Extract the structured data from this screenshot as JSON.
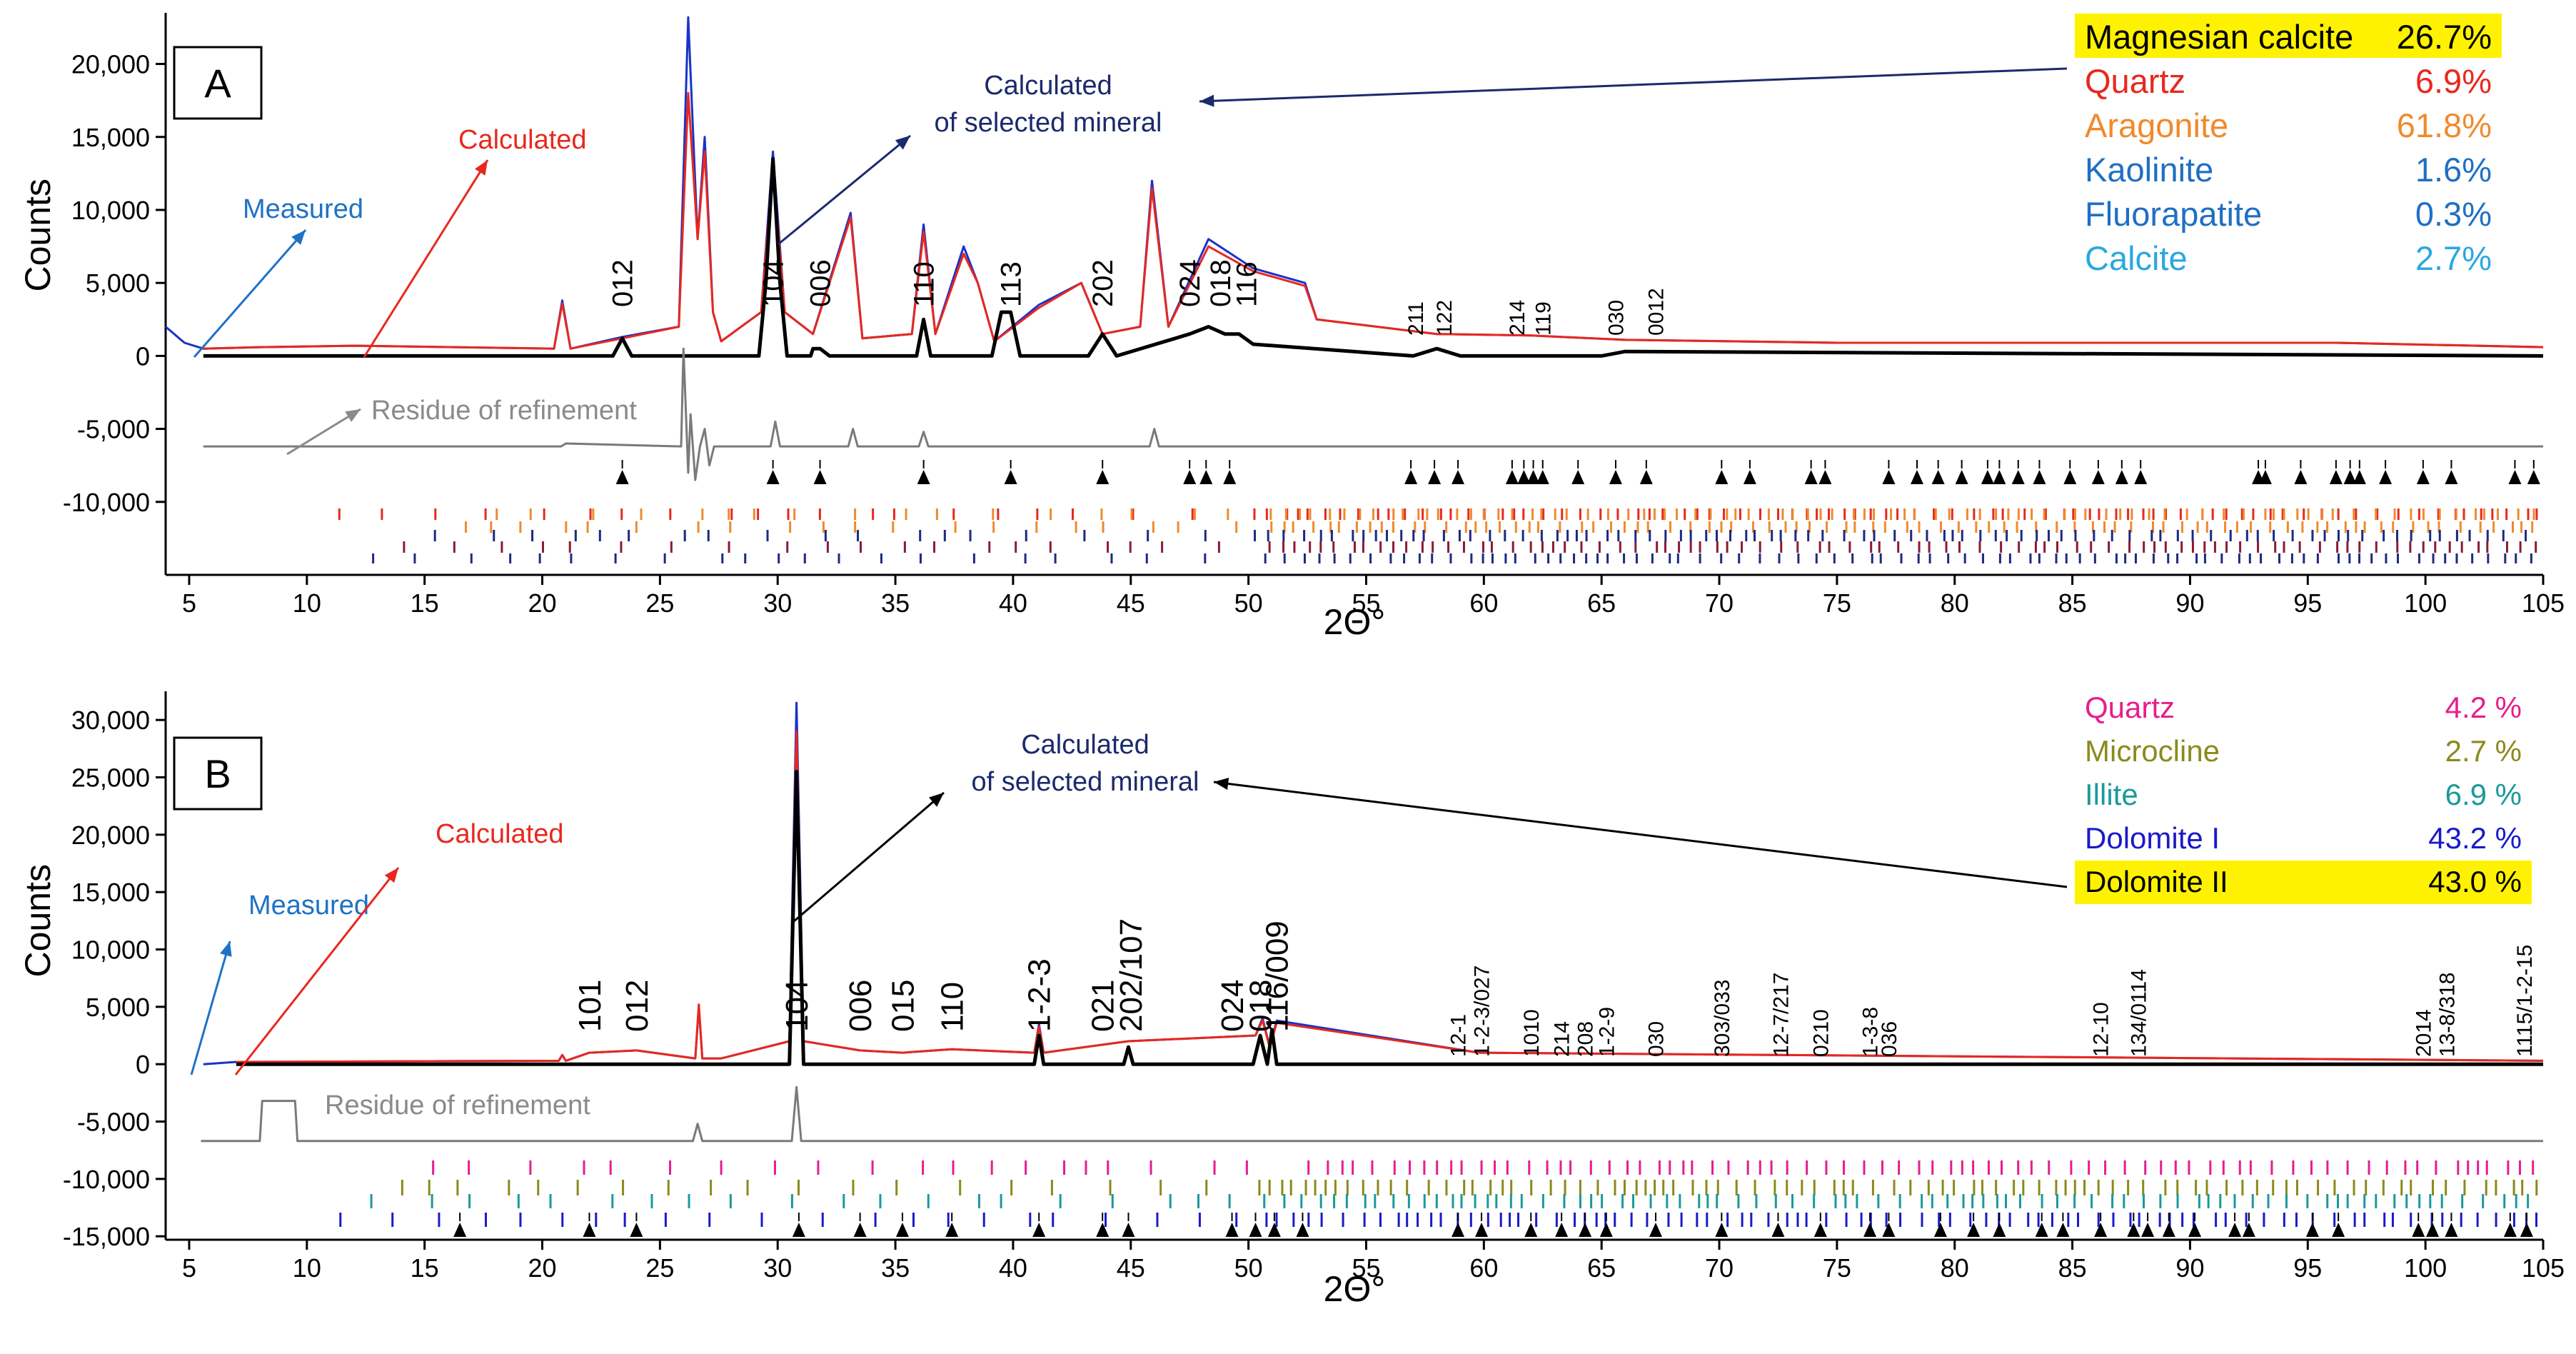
{
  "chart_data": [
    {
      "type": "line",
      "panel_label": "A",
      "xlabel": "2Θ°",
      "ylabel": "Counts",
      "xlim": [
        4,
        105
      ],
      "ylim": [
        -15000,
        23500
      ],
      "x_ticks": [
        5,
        10,
        15,
        20,
        25,
        30,
        35,
        40,
        45,
        50,
        55,
        60,
        65,
        70,
        75,
        80,
        85,
        90,
        95,
        100,
        105
      ],
      "y_ticks": [
        {
          "value": 20000,
          "label": "20,000"
        },
        {
          "value": 15000,
          "label": "15,000"
        },
        {
          "value": 10000,
          "label": "10,000"
        },
        {
          "value": 5000,
          "label": "5,000"
        },
        {
          "value": 0,
          "label": "0"
        },
        {
          "value": -5000,
          "label": "-5,000"
        },
        {
          "value": -10000,
          "label": "-10,000"
        }
      ],
      "series_labels": {
        "measured": "Measured",
        "calculated": "Calculated",
        "selected": "Calculated\nof selected mineral",
        "residue": "Residue of refinement"
      },
      "series": [
        {
          "name": "Measured",
          "color": "#1a32c8",
          "x": [
            4,
            4.8,
            5.6,
            8,
            12,
            20.5,
            20.85,
            21.2,
            23.4,
            25.8,
            26.2,
            26.6,
            26.9,
            27.25,
            27.6,
            29.3,
            29.8,
            30.3,
            31.5,
            33.1,
            33.6,
            35.7,
            36.2,
            36.7,
            37.9,
            38.5,
            39.2,
            41.1,
            42.9,
            43.8,
            45.4,
            45.9,
            46.6,
            48.3,
            50.2,
            52.4,
            52.9,
            58,
            62,
            66,
            75,
            80,
            96.2,
            105
          ],
          "y": [
            2000,
            900,
            500,
            600,
            700,
            500,
            3800,
            500,
            1300,
            2000,
            23200,
            8000,
            15000,
            3000,
            1000,
            3000,
            14000,
            3000,
            1500,
            9800,
            1200,
            1500,
            9000,
            1500,
            7500,
            5000,
            1000,
            3500,
            5000,
            1500,
            2000,
            12000,
            2000,
            8000,
            6000,
            5000,
            2500,
            1500,
            1400,
            1100,
            900,
            900,
            900,
            600
          ]
        },
        {
          "name": "Calculated",
          "color": "#e8281e",
          "x": [
            5.6,
            8,
            12,
            20.5,
            20.85,
            21.2,
            23.4,
            25.8,
            26.2,
            26.6,
            26.9,
            27.25,
            27.6,
            29.3,
            29.8,
            30.3,
            31.5,
            33.1,
            33.6,
            35.7,
            36.2,
            36.7,
            37.9,
            38.5,
            39.2,
            41.1,
            42.9,
            43.8,
            45.4,
            45.9,
            46.6,
            48.3,
            50.2,
            52.4,
            52.9,
            58,
            62,
            66,
            75,
            80,
            96.2,
            105
          ],
          "y": [
            500,
            600,
            700,
            500,
            3600,
            500,
            1200,
            2000,
            18000,
            8000,
            14000,
            3000,
            1000,
            3000,
            13000,
            3000,
            1500,
            9500,
            1200,
            1500,
            8500,
            1500,
            7000,
            5000,
            1000,
            3300,
            5000,
            1500,
            2000,
            11500,
            2000,
            7500,
            5800,
            4800,
            2500,
            1500,
            1400,
            1100,
            900,
            900,
            900,
            600
          ]
        },
        {
          "name": "Calculated of selected mineral",
          "color": "#000000",
          "x": [
            5.6,
            23,
            23.4,
            23.8,
            29.2,
            29.5,
            29.8,
            30.1,
            30.4,
            31.4,
            31.5,
            31.8,
            32.2,
            35.9,
            36.2,
            36.5,
            39.1,
            39.5,
            39.9,
            40.3,
            43.2,
            43.8,
            44.4,
            47.5,
            48.3,
            49,
            49.6,
            50.2,
            57,
            58,
            59,
            65,
            66,
            105
          ],
          "y": [
            0,
            0,
            1200,
            0,
            0,
            5000,
            13500,
            5000,
            0,
            0,
            500,
            500,
            0,
            0,
            2500,
            0,
            0,
            3000,
            3000,
            0,
            0,
            1500,
            0,
            1500,
            2000,
            1500,
            1500,
            800,
            0,
            500,
            0,
            0,
            300,
            0
          ]
        },
        {
          "name": "Residue of refinement",
          "color": "#7a7a7a",
          "x": [
            5.6,
            20.8,
            21,
            25.9,
            26,
            26.2,
            26.3,
            26.5,
            26.7,
            26.9,
            27.1,
            27.3,
            29.7,
            29.9,
            30.1,
            33,
            33.2,
            33.4,
            36,
            36.2,
            36.4,
            45.8,
            46,
            46.2,
            105
          ],
          "y": [
            -6200,
            -6200,
            -6000,
            -6200,
            500,
            -8000,
            -4000,
            -8500,
            -6200,
            -5000,
            -7500,
            -6200,
            -6200,
            -4500,
            -6200,
            -6200,
            -5000,
            -6200,
            -6200,
            -5200,
            -6200,
            -6200,
            -5000,
            -6200,
            -6200
          ]
        }
      ],
      "peak_labels": [
        {
          "x": 23.4,
          "label": "012"
        },
        {
          "x": 29.8,
          "label": "104"
        },
        {
          "x": 31.8,
          "label": "006"
        },
        {
          "x": 36.2,
          "label": "110"
        },
        {
          "x": 39.9,
          "label": "113"
        },
        {
          "x": 43.8,
          "label": "202"
        },
        {
          "x": 47.5,
          "label": "024"
        },
        {
          "x": 48.8,
          "label": "018"
        },
        {
          "x": 49.9,
          "label": "116"
        },
        {
          "x": 57.1,
          "label": "211"
        },
        {
          "x": 58.3,
          "label": "122"
        },
        {
          "x": 61.4,
          "label": "214"
        },
        {
          "x": 62.5,
          "label": "119"
        },
        {
          "x": 65.6,
          "label": "030"
        },
        {
          "x": 67.3,
          "label": "0012"
        }
      ],
      "peak_markers_x": [
        23.4,
        29.8,
        31.8,
        36.2,
        39.9,
        43.8,
        47.5,
        48.2,
        49.2,
        56.9,
        57.9,
        58.9,
        61.2,
        61.7,
        62.1,
        62.5,
        64,
        65.6,
        66.9,
        70.1,
        71.3,
        73.9,
        74.5,
        77.2,
        78.4,
        79.3,
        80.3,
        81.4,
        81.9,
        82.7,
        83.6,
        84.9,
        86.1,
        87.1,
        87.9,
        92.9,
        93.2,
        94.7,
        96.2,
        96.8,
        97.2,
        98.3,
        99.9,
        101.1,
        103.8,
        104.6
      ],
      "legend": [
        {
          "name": "Magnesian calcite",
          "value": "26.7%",
          "color": "#000000",
          "highlight": true
        },
        {
          "name": "Quartz",
          "value": "6.9%",
          "color": "#e8281e",
          "highlight": false
        },
        {
          "name": "Aragonite",
          "value": "61.8%",
          "color": "#f08a2c",
          "highlight": false
        },
        {
          "name": "Kaolinite",
          "value": "1.6%",
          "color": "#1f6fc4",
          "highlight": false
        },
        {
          "name": "Fluorapatite",
          "value": "0.3%",
          "color": "#1f6fc4",
          "highlight": false
        },
        {
          "name": "Calcite",
          "value": "2.7%",
          "color": "#29a8e0",
          "highlight": false
        }
      ],
      "colors": {
        "measured": "#1f72c4",
        "calculated": "#e8281e",
        "selected": "#1c2a6b",
        "residue": "#8a8a8a",
        "highlight": "#fff200"
      }
    },
    {
      "type": "line",
      "panel_label": "B",
      "xlabel": "2Θ°",
      "ylabel": "Counts",
      "xlim": [
        4,
        105
      ],
      "ylim": [
        -15300,
        32500
      ],
      "x_ticks": [
        5,
        10,
        15,
        20,
        25,
        30,
        35,
        40,
        45,
        50,
        55,
        60,
        65,
        70,
        75,
        80,
        85,
        90,
        95,
        100,
        105
      ],
      "y_ticks": [
        {
          "value": 30000,
          "label": "30,000"
        },
        {
          "value": 25000,
          "label": "25,000"
        },
        {
          "value": 20000,
          "label": "20,000"
        },
        {
          "value": 15000,
          "label": "15,000"
        },
        {
          "value": 10000,
          "label": "10,000"
        },
        {
          "value": 5000,
          "label": "5,000"
        },
        {
          "value": 0,
          "label": "0"
        },
        {
          "value": -5000,
          "label": "-5,000"
        },
        {
          "value": -10000,
          "label": "-10,000"
        },
        {
          "value": -15000,
          "label": "-15,000"
        }
      ],
      "series_labels": {
        "measured": "Measured",
        "calculated": "Calculated",
        "selected": "Calculated\nof selected mineral",
        "residue": "Residue of refinement"
      },
      "series": [
        {
          "name": "Measured",
          "color": "#1a32c8",
          "x": [
            5.6,
            7,
            20.7,
            20.85,
            21,
            22,
            24,
            26.5,
            26.65,
            26.8,
            27.6,
            30.5,
            30.8,
            31.1,
            33.5,
            35.3,
            37.4,
            40.9,
            41.1,
            41.3,
            44.9,
            50.3,
            50.6,
            50.9,
            51.2,
            59.8,
            105
          ],
          "y": [
            0,
            200,
            300,
            800,
            300,
            1000,
            1200,
            500,
            5000,
            500,
            500,
            2000,
            31500,
            2000,
            1200,
            1000,
            1300,
            1000,
            3500,
            1000,
            2000,
            2500,
            4000,
            1500,
            3800,
            1000,
            300
          ]
        },
        {
          "name": "Calculated",
          "color": "#e8281e",
          "x": [
            7,
            20.7,
            20.85,
            21,
            22,
            24,
            26.5,
            26.65,
            26.8,
            27.6,
            30.5,
            30.8,
            31.1,
            33.5,
            35.3,
            37.4,
            40.9,
            41.1,
            41.3,
            44.9,
            50.3,
            50.6,
            50.9,
            51.2,
            59.8,
            105
          ],
          "y": [
            200,
            300,
            800,
            300,
            1000,
            1200,
            500,
            5200,
            500,
            500,
            2000,
            29000,
            2000,
            1200,
            1000,
            1300,
            1000,
            3300,
            1000,
            2000,
            2500,
            3800,
            1500,
            3600,
            1000,
            300
          ]
        },
        {
          "name": "Calculated of selected mineral",
          "color": "#000000",
          "x": [
            7,
            30.5,
            30.8,
            31.1,
            40.9,
            41.1,
            41.3,
            44.7,
            44.9,
            45.1,
            50.2,
            50.5,
            50.8,
            51,
            51.2,
            105
          ],
          "y": [
            0,
            0,
            25500,
            0,
            0,
            2500,
            0,
            0,
            1500,
            0,
            0,
            2500,
            0,
            3000,
            0,
            0
          ]
        },
        {
          "name": "Residue of refinement",
          "color": "#7a7a7a",
          "x": [
            5.5,
            8,
            8.1,
            9.5,
            9.6,
            26.4,
            26.6,
            26.8,
            30.6,
            30.8,
            31,
            105
          ],
          "y": [
            -6700,
            -6700,
            -3200,
            -3200,
            -6700,
            -6700,
            -5200,
            -6700,
            -6700,
            -2000,
            -6700,
            -6700
          ]
        }
      ],
      "peak_labels": [
        {
          "x": 22,
          "label": "101"
        },
        {
          "x": 24,
          "label": "012"
        },
        {
          "x": 30.8,
          "label": "104"
        },
        {
          "x": 33.5,
          "label": "006"
        },
        {
          "x": 35.3,
          "label": "015"
        },
        {
          "x": 37.4,
          "label": "110"
        },
        {
          "x": 41.1,
          "label": "1-2-3"
        },
        {
          "x": 43.8,
          "label": "021"
        },
        {
          "x": 45,
          "label": "202/107"
        },
        {
          "x": 49.3,
          "label": "024"
        },
        {
          "x": 50.5,
          "label": "018"
        },
        {
          "x": 51.2,
          "label": "116/009"
        },
        {
          "x": 58.9,
          "label": "12-1"
        },
        {
          "x": 59.9,
          "label": "1-2-3/027"
        },
        {
          "x": 62,
          "label": "1010"
        },
        {
          "x": 63.3,
          "label": "214"
        },
        {
          "x": 64.3,
          "label": "208"
        },
        {
          "x": 65.2,
          "label": "1-2-9"
        },
        {
          "x": 67.3,
          "label": "030"
        },
        {
          "x": 70.1,
          "label": "303/033"
        },
        {
          "x": 72.6,
          "label": "12-7/217"
        },
        {
          "x": 74.3,
          "label": "0210"
        },
        {
          "x": 76.4,
          "label": "1-3-8"
        },
        {
          "x": 77.2,
          "label": "036"
        },
        {
          "x": 86.2,
          "label": "12-10"
        },
        {
          "x": 87.8,
          "label": "134/0114"
        },
        {
          "x": 99.9,
          "label": "2014"
        },
        {
          "x": 100.9,
          "label": "13-8/318"
        },
        {
          "x": 104.2,
          "label": "1115/1-2-15"
        }
      ],
      "peak_markers_x": [
        16.5,
        22,
        24,
        30.9,
        33.5,
        35.3,
        37.4,
        41.1,
        43.8,
        44.9,
        49.3,
        50.3,
        51.1,
        52.3,
        58.9,
        59.9,
        62,
        63.3,
        64.3,
        65.2,
        67.3,
        70.1,
        72.5,
        74.3,
        76.4,
        77.2,
        79.4,
        80.8,
        81.9,
        83.7,
        84.6,
        86.2,
        87.6,
        88.2,
        89.1,
        90.2,
        91.9,
        92.5,
        95.2,
        96.3,
        99.7,
        100.3,
        101.1,
        103.6,
        104.3
      ],
      "legend": [
        {
          "name": "Quartz",
          "value": "4.2 %",
          "color": "#e61e8c",
          "highlight": false
        },
        {
          "name": "Microcline",
          "value": "2.7 %",
          "color": "#8a8a1c",
          "highlight": false
        },
        {
          "name": "Illite",
          "value": "6.9 %",
          "color": "#1a9a9a",
          "highlight": false
        },
        {
          "name": "Dolomite I",
          "value": "43.2 %",
          "color": "#1a1ac8",
          "highlight": false
        },
        {
          "name": "Dolomite II",
          "value": "43.0 %",
          "color": "#000000",
          "highlight": true
        }
      ],
      "colors": {
        "measured": "#1f72c4",
        "calculated": "#e8281e",
        "selected": "#1c2a6b",
        "residue": "#8a8a8a",
        "highlight": "#fff200"
      }
    }
  ]
}
